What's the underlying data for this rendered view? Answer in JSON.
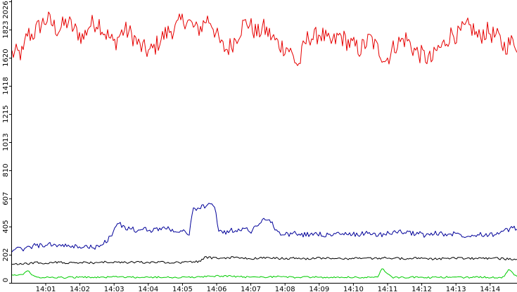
{
  "chart_data": {
    "type": "line",
    "title": "",
    "xlabel": "",
    "ylabel": "",
    "ylim": [
      0,
      2026
    ],
    "xlim_minutes": [
      0.35,
      15.1
    ],
    "grid": false,
    "legend": "none",
    "y_ticks": [
      {
        "value": 0,
        "label": "0"
      },
      {
        "value": 202,
        "label": "202"
      },
      {
        "value": 405,
        "label": "405"
      },
      {
        "value": 607,
        "label": "607"
      },
      {
        "value": 810,
        "label": "810"
      },
      {
        "value": 1013,
        "label": "1013"
      },
      {
        "value": 1215,
        "label": "1215"
      },
      {
        "value": 1418,
        "label": "1418"
      },
      {
        "value": 1620,
        "label": "1620"
      },
      {
        "value": 1823,
        "label": "1823"
      },
      {
        "value": 2026,
        "label": "2026"
      }
    ],
    "x_ticks": [
      {
        "minute": 1,
        "label": "14:01"
      },
      {
        "minute": 2,
        "label": "14:02"
      },
      {
        "minute": 3,
        "label": "14:03"
      },
      {
        "minute": 4,
        "label": "14:04"
      },
      {
        "minute": 5,
        "label": "14:05"
      },
      {
        "minute": 6,
        "label": "14:06"
      },
      {
        "minute": 7,
        "label": "14:07"
      },
      {
        "minute": 8,
        "label": "14:08"
      },
      {
        "minute": 9,
        "label": "14:09"
      },
      {
        "minute": 10,
        "label": "14:10"
      },
      {
        "minute": 11,
        "label": "14:11"
      },
      {
        "minute": 12,
        "label": "14:12"
      },
      {
        "minute": 13,
        "label": "14:13"
      },
      {
        "minute": 14,
        "label": "14:14"
      }
    ],
    "series": [
      {
        "color": "#e60000",
        "x": [
          0.35,
          0.45,
          0.6,
          0.75,
          0.9,
          1.05,
          1.2,
          1.35,
          1.5,
          1.65,
          1.8,
          1.95,
          2.1,
          2.25,
          2.4,
          2.55,
          2.7,
          2.85,
          3.0,
          3.15,
          3.3,
          3.45,
          3.6,
          3.75,
          3.9,
          4.05,
          4.2,
          4.35,
          4.5,
          4.65,
          4.8,
          4.95,
          5.1,
          5.25,
          5.4,
          5.55,
          5.7,
          5.85,
          6.0,
          6.15,
          6.3,
          6.45,
          6.6,
          6.75,
          6.9,
          7.05,
          7.2,
          7.35,
          7.5,
          7.65,
          7.8,
          7.95,
          8.1,
          8.25,
          8.4,
          8.55,
          8.7,
          8.85,
          9.0,
          9.15,
          9.3,
          9.45,
          9.6,
          9.75,
          9.9,
          10.05,
          10.2,
          10.35,
          10.5,
          10.65,
          10.8,
          10.95,
          11.1,
          11.25,
          11.4,
          11.55,
          11.7,
          11.85,
          12.0,
          12.15,
          12.3,
          12.45,
          12.6,
          12.75,
          12.9,
          13.05,
          13.2,
          13.35,
          13.5,
          13.65,
          13.8,
          13.95,
          14.1,
          14.25,
          14.4,
          14.55,
          14.7,
          14.85,
          15.0,
          15.1
        ],
        "values": [
          1650,
          1800,
          1780,
          1830,
          1870,
          1900,
          1860,
          1820,
          1850,
          1880,
          1830,
          1800,
          1760,
          1850,
          1870,
          1880,
          1810,
          1770,
          1720,
          1780,
          1820,
          1800,
          1760,
          1700,
          1680,
          1660,
          1700,
          1750,
          1790,
          1820,
          1830,
          1880,
          1900,
          1860,
          1820,
          1840,
          1900,
          1880,
          1780,
          1700,
          1680,
          1720,
          1780,
          1850,
          1880,
          1830,
          1790,
          1840,
          1800,
          1760,
          1720,
          1700,
          1690,
          1620,
          1560,
          1700,
          1780,
          1760,
          1800,
          1770,
          1720,
          1740,
          1780,
          1750,
          1720,
          1700,
          1680,
          1720,
          1760,
          1700,
          1660,
          1600,
          1660,
          1720,
          1740,
          1760,
          1700,
          1660,
          1640,
          1620,
          1600,
          1680,
          1700,
          1760,
          1800,
          1780,
          1820,
          1840,
          1830,
          1760,
          1800,
          1810,
          1780,
          1760,
          1700,
          1720,
          1740,
          1700,
          1680,
          1760
        ]
      },
      {
        "color": "#000099",
        "x": [
          0.35,
          0.6,
          0.9,
          1.2,
          1.5,
          1.8,
          2.1,
          2.4,
          2.6,
          2.75,
          2.9,
          3.1,
          3.3,
          3.5,
          3.7,
          3.9,
          4.1,
          4.3,
          4.5,
          4.7,
          4.9,
          5.05,
          5.2,
          5.3,
          5.5,
          5.7,
          5.85,
          5.95,
          6.05,
          6.2,
          6.4,
          6.6,
          6.8,
          7.0,
          7.2,
          7.35,
          7.5,
          7.65,
          7.8,
          7.9,
          8.1,
          8.3,
          8.5,
          8.7,
          8.9,
          9.1,
          9.3,
          9.5,
          9.7,
          9.9,
          10.1,
          10.3,
          10.5,
          10.7,
          10.9,
          11.1,
          11.3,
          11.5,
          11.7,
          11.9,
          12.1,
          12.3,
          12.5,
          12.7,
          12.9,
          13.1,
          13.3,
          13.5,
          13.7,
          13.9,
          14.1,
          14.3,
          14.5,
          14.7,
          14.9,
          15.1
        ],
        "values": [
          240,
          265,
          270,
          275,
          268,
          258,
          262,
          255,
          258,
          300,
          330,
          430,
          400,
          390,
          370,
          385,
          380,
          390,
          395,
          385,
          365,
          365,
          360,
          530,
          540,
          550,
          570,
          560,
          380,
          360,
          375,
          385,
          390,
          370,
          420,
          460,
          450,
          420,
          360,
          345,
          350,
          355,
          345,
          350,
          355,
          350,
          340,
          355,
          350,
          345,
          350,
          355,
          360,
          345,
          350,
          360,
          370,
          365,
          355,
          360,
          340,
          350,
          360,
          345,
          355,
          350,
          340,
          345,
          355,
          345,
          350,
          360,
          380,
          395,
          370,
          360
        ]
      },
      {
        "color": "#000000",
        "x": [
          0.35,
          0.7,
          1.0,
          1.3,
          1.6,
          1.9,
          2.2,
          2.5,
          2.8,
          3.1,
          3.4,
          3.7,
          4.0,
          4.3,
          4.6,
          4.9,
          5.2,
          5.5,
          5.65,
          5.8,
          6.1,
          6.4,
          6.7,
          7.0,
          7.3,
          7.6,
          7.9,
          8.2,
          8.5,
          8.8,
          9.1,
          9.4,
          9.7,
          10.0,
          10.3,
          10.6,
          10.9,
          11.2,
          11.5,
          11.8,
          12.1,
          12.4,
          12.7,
          13.0,
          13.3,
          13.6,
          13.9,
          14.2,
          14.5,
          14.8,
          15.1
        ],
        "values": [
          135,
          145,
          140,
          150,
          145,
          140,
          148,
          142,
          150,
          145,
          148,
          150,
          145,
          150,
          148,
          146,
          150,
          152,
          185,
          180,
          178,
          182,
          178,
          175,
          180,
          178,
          175,
          178,
          172,
          175,
          178,
          175,
          172,
          176,
          178,
          175,
          180,
          176,
          174,
          178,
          176,
          172,
          175,
          178,
          176,
          174,
          178,
          175,
          172,
          168,
          170
        ]
      },
      {
        "color": "#00cc00",
        "x": [
          0.35,
          0.45,
          0.55,
          0.7,
          0.9,
          1.2,
          1.5,
          1.8,
          2.1,
          2.4,
          2.7,
          3.0,
          3.3,
          3.6,
          3.9,
          4.2,
          4.5,
          4.8,
          5.1,
          5.4,
          5.7,
          6.0,
          6.3,
          6.6,
          6.9,
          7.2,
          7.5,
          7.8,
          8.1,
          8.4,
          8.7,
          9.0,
          9.3,
          9.6,
          9.9,
          10.2,
          10.5,
          10.7,
          10.85,
          11.0,
          11.15,
          11.3,
          11.6,
          11.9,
          12.2,
          12.5,
          12.8,
          13.1,
          13.4,
          13.7,
          14.0,
          14.2,
          14.4,
          14.55,
          14.7,
          14.9,
          15.1
        ],
        "values": [
          55,
          95,
          70,
          45,
          40,
          42,
          38,
          40,
          42,
          38,
          40,
          45,
          42,
          40,
          38,
          40,
          42,
          40,
          38,
          42,
          45,
          50,
          48,
          45,
          42,
          40,
          42,
          45,
          40,
          38,
          42,
          40,
          38,
          40,
          42,
          40,
          38,
          42,
          110,
          60,
          40,
          38,
          40,
          42,
          38,
          40,
          42,
          40,
          38,
          42,
          40,
          38,
          42,
          100,
          55,
          40,
          42
        ]
      }
    ]
  }
}
